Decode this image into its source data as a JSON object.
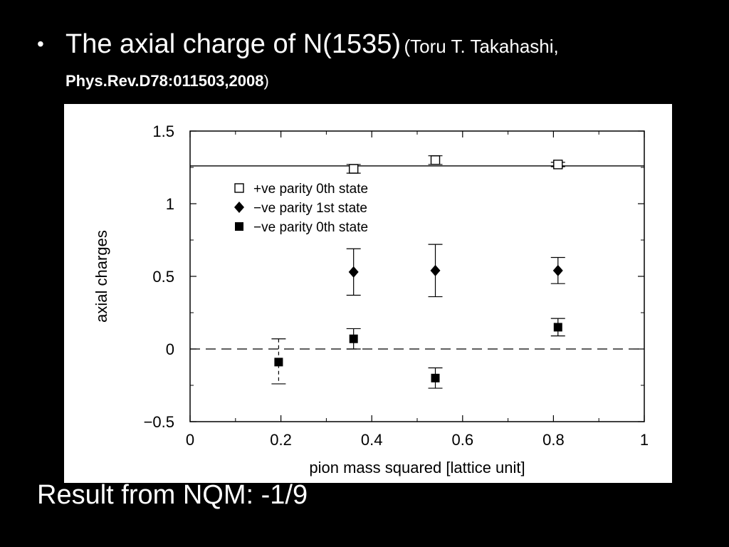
{
  "slide": {
    "bullet": "•",
    "title": "The axial charge of N(1535)",
    "citation_author": "(Toru T. Takahashi,",
    "citation_journal": "Phys.Rev.D78:011503,2008",
    "citation_close": ")",
    "result": "Result from NQM: -1/9"
  },
  "chart_data": {
    "type": "scatter",
    "title": "",
    "xlabel": "pion mass squared [lattice unit]",
    "ylabel": "axial charges",
    "xlim": [
      0,
      1
    ],
    "ylim": [
      -0.5,
      1.5
    ],
    "xticks": [
      0,
      0.2,
      0.4,
      0.6,
      0.8,
      1
    ],
    "xtick_labels": [
      "0",
      "0.2",
      "0.4",
      "0.6",
      "0.8",
      "1"
    ],
    "yticks": [
      -0.5,
      0,
      0.5,
      1,
      1.5
    ],
    "ytick_labels": [
      "−0.5",
      "0",
      "0.5",
      "1",
      "1.5"
    ],
    "grid": false,
    "legend_position": "top-left",
    "reference_lines": [
      {
        "y": 1.26,
        "style": "solid"
      },
      {
        "y": 0,
        "style": "dashed"
      }
    ],
    "series": [
      {
        "name": "+ve parity 0th state",
        "marker": "open-square",
        "points": [
          {
            "x": 0.36,
            "y": 1.24,
            "err_low": 0.03,
            "err_high": 0.03
          },
          {
            "x": 0.54,
            "y": 1.3,
            "err_low": 0.03,
            "err_high": 0.03
          },
          {
            "x": 0.81,
            "y": 1.27,
            "err_low": 0.015,
            "err_high": 0.015
          }
        ]
      },
      {
        "name": "−ve parity 1st state",
        "marker": "filled-diamond",
        "points": [
          {
            "x": 0.36,
            "y": 0.53,
            "err_low": 0.16,
            "err_high": 0.16
          },
          {
            "x": 0.54,
            "y": 0.54,
            "err_low": 0.18,
            "err_high": 0.18
          },
          {
            "x": 0.81,
            "y": 0.54,
            "err_low": 0.09,
            "err_high": 0.09
          }
        ]
      },
      {
        "name": "−ve parity 0th state",
        "marker": "filled-square",
        "points": [
          {
            "x": 0.195,
            "y": -0.09,
            "err_low": 0.15,
            "err_high": 0.16,
            "err_style": "dashed"
          },
          {
            "x": 0.36,
            "y": 0.07,
            "err_low": 0.07,
            "err_high": 0.07
          },
          {
            "x": 0.54,
            "y": -0.2,
            "err_low": 0.07,
            "err_high": 0.07
          },
          {
            "x": 0.81,
            "y": 0.15,
            "err_low": 0.06,
            "err_high": 0.06
          }
        ]
      }
    ]
  }
}
